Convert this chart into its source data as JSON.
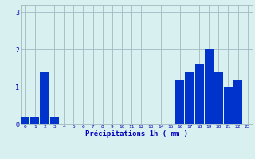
{
  "hours": [
    0,
    1,
    2,
    3,
    4,
    5,
    6,
    7,
    8,
    9,
    10,
    11,
    12,
    13,
    14,
    15,
    16,
    17,
    18,
    19,
    20,
    21,
    22,
    23
  ],
  "values": [
    0.2,
    0.2,
    1.4,
    0.2,
    0.0,
    0.0,
    0.0,
    0.0,
    0.0,
    0.0,
    0.0,
    0.0,
    0.0,
    0.0,
    0.0,
    0.0,
    1.2,
    1.4,
    1.6,
    2.0,
    1.4,
    1.0,
    1.2,
    0.0
  ],
  "bar_color": "#0033cc",
  "background_color": "#d8f0f0",
  "grid_color": "#a0b8c0",
  "xlabel": "Précipitations 1h ( mm )",
  "xlabel_color": "#0000bb",
  "tick_color": "#0000bb",
  "ylim": [
    0,
    3.2
  ],
  "yticks": [
    0,
    1,
    2,
    3
  ],
  "figsize": [
    3.2,
    2.0
  ],
  "dpi": 100
}
